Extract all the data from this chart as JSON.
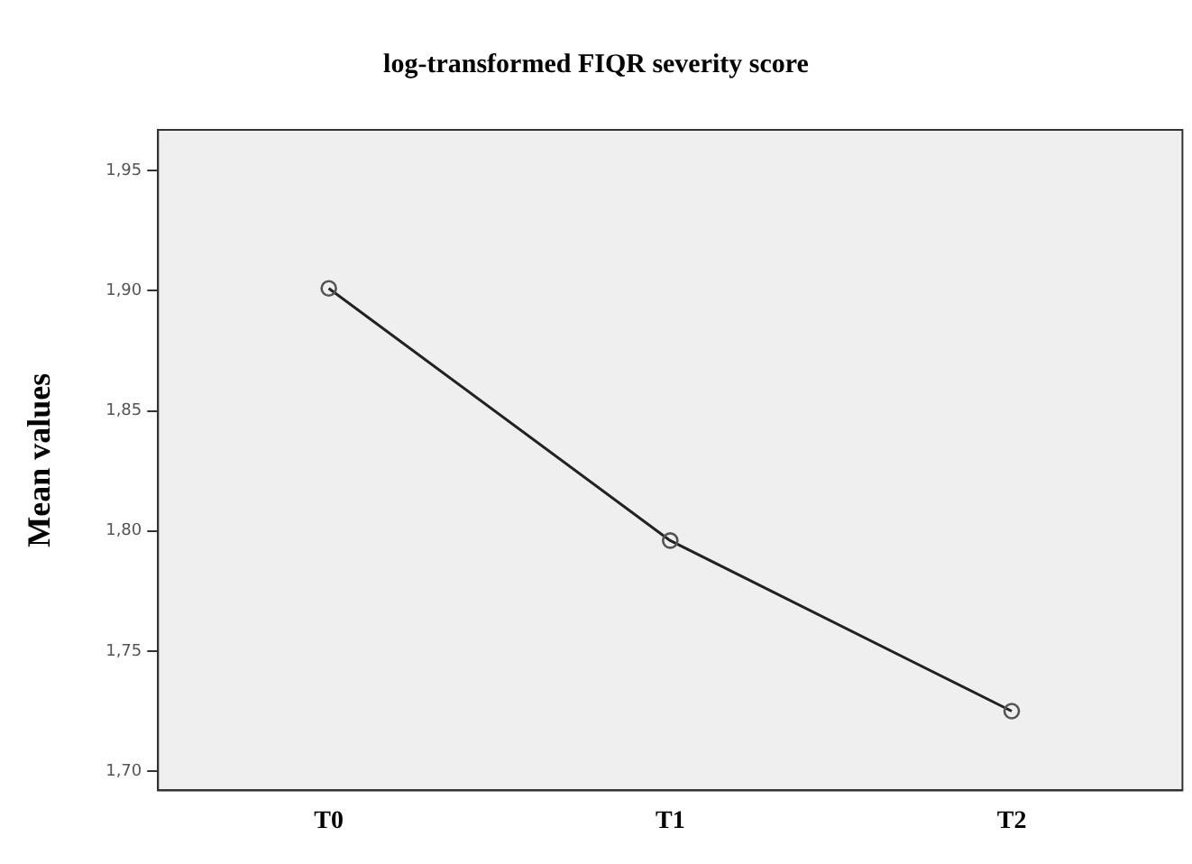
{
  "chart_data": {
    "type": "line",
    "title": "log-transformed FIQR severity score",
    "ylabel": "Mean values",
    "categories": [
      "T0",
      "T1",
      "T2"
    ],
    "series": [
      {
        "color": "#222222",
        "values": [
          1.901,
          1.796,
          1.725
        ]
      }
    ],
    "ylim": [
      1.692,
      1.967
    ],
    "yticks": [
      {
        "value": 1.7,
        "label": "1,70"
      },
      {
        "value": 1.75,
        "label": "1,75"
      },
      {
        "value": 1.8,
        "label": "1,80"
      },
      {
        "value": 1.85,
        "label": "1,85"
      },
      {
        "value": 1.9,
        "label": "1,90"
      },
      {
        "value": 1.95,
        "label": "1,95"
      }
    ],
    "grid": false,
    "legend": false,
    "marker": "circle",
    "line_style": "solid"
  }
}
